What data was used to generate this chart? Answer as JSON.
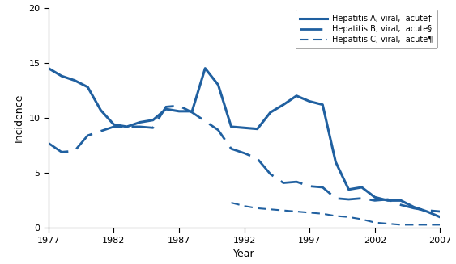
{
  "years_A": [
    1977,
    1978,
    1979,
    1980,
    1981,
    1982,
    1983,
    1984,
    1985,
    1986,
    1987,
    1988,
    1989,
    1990,
    1991,
    1992,
    1993,
    1994,
    1995,
    1996,
    1997,
    1998,
    1999,
    2000,
    2001,
    2002,
    2003,
    2004,
    2005,
    2006,
    2007
  ],
  "hep_A": [
    14.5,
    13.8,
    13.4,
    12.8,
    10.7,
    9.4,
    9.2,
    9.6,
    9.8,
    10.8,
    10.6,
    10.6,
    14.5,
    13.0,
    9.2,
    9.1,
    9.0,
    10.5,
    11.2,
    12.0,
    11.5,
    11.2,
    6.0,
    3.5,
    3.7,
    2.8,
    2.5,
    2.5,
    1.9,
    1.5,
    1.0
  ],
  "years_B": [
    1977,
    1978,
    1979,
    1980,
    1981,
    1982,
    1983,
    1984,
    1985,
    1986,
    1987,
    1988,
    1989,
    1990,
    1991,
    1992,
    1993,
    1994,
    1995,
    1996,
    1997,
    1998,
    1999,
    2000,
    2001,
    2002,
    2003,
    2004,
    2005,
    2006,
    2007
  ],
  "hep_B": [
    7.7,
    6.9,
    7.0,
    8.4,
    8.8,
    9.2,
    9.2,
    9.2,
    9.1,
    11.0,
    11.1,
    10.5,
    9.7,
    8.9,
    7.2,
    6.8,
    6.3,
    4.9,
    4.1,
    4.2,
    3.8,
    3.7,
    2.7,
    2.6,
    2.7,
    2.5,
    2.6,
    2.1,
    1.8,
    1.6,
    1.5
  ],
  "years_C": [
    1991,
    1992,
    1993,
    1994,
    1995,
    1996,
    1997,
    1998,
    1999,
    2000,
    2001,
    2002,
    2003,
    2004,
    2005,
    2006,
    2007
  ],
  "hep_C": [
    2.3,
    2.0,
    1.8,
    1.7,
    1.6,
    1.5,
    1.4,
    1.3,
    1.1,
    1.0,
    0.8,
    0.5,
    0.4,
    0.3,
    0.3,
    0.3,
    0.3
  ],
  "color": "#2060A0",
  "xlim": [
    1977,
    2007
  ],
  "ylim": [
    0,
    20
  ],
  "yticks": [
    0,
    5,
    10,
    15,
    20
  ],
  "xticks": [
    1977,
    1982,
    1987,
    1992,
    1997,
    2002,
    2007
  ],
  "xlabel": "Year",
  "ylabel": "Incidence",
  "legend_A": "Hepatitis A, viral,  acute†",
  "legend_B": "Hepatitis B, viral,  acute§",
  "legend_C": "Hepatitis C, viral,  acute¶"
}
